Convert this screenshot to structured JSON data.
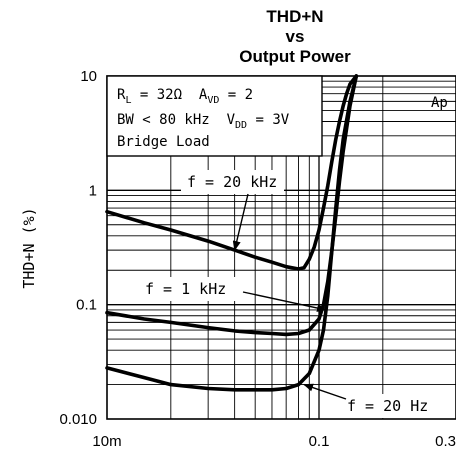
{
  "chart_data": {
    "type": "line",
    "title_lines": [
      "THD+N",
      "vs",
      "Output Power"
    ],
    "ylabel": "THD+N (%)",
    "xlabel": "",
    "x_scale": "log",
    "y_scale": "log",
    "xlim": [
      0.01,
      0.3
    ],
    "ylim": [
      0.01,
      10
    ],
    "x_tick_labels": [
      {
        "value": 0.01,
        "label": "10m"
      },
      {
        "value": 0.1,
        "label": "0.1"
      },
      {
        "value": 0.3,
        "label": "0.3"
      }
    ],
    "y_tick_labels": [
      {
        "value": 10,
        "label": "10"
      },
      {
        "value": 1,
        "label": "1"
      },
      {
        "value": 0.1,
        "label": "0.1"
      },
      {
        "value": 0.01,
        "label": "0.010"
      }
    ],
    "grid": true,
    "conditions": {
      "line1": {
        "a": "R",
        "a_sub": "L",
        "b": " = 32Ω  A",
        "b_sub": "VD",
        "c": " = 2"
      },
      "line2": {
        "a": "BW < 80 kHz  V",
        "a_sub": "DD",
        "b": " = 3V"
      },
      "line3": "Bridge Load"
    },
    "watermark": "Ap",
    "series": [
      {
        "name": "f = 20 kHz",
        "x": [
          0.01,
          0.015,
          0.02,
          0.03,
          0.04,
          0.05,
          0.06,
          0.07,
          0.08,
          0.085,
          0.09,
          0.095,
          0.1,
          0.105,
          0.11,
          0.115,
          0.12,
          0.125,
          0.13,
          0.135,
          0.14,
          0.15
        ],
        "y": [
          0.65,
          0.52,
          0.45,
          0.36,
          0.3,
          0.26,
          0.235,
          0.215,
          0.205,
          0.21,
          0.25,
          0.32,
          0.45,
          0.7,
          1.1,
          1.8,
          2.8,
          4.0,
          5.5,
          7.0,
          8.5,
          10
        ]
      },
      {
        "name": "f = 1 kHz",
        "x": [
          0.01,
          0.015,
          0.02,
          0.03,
          0.04,
          0.05,
          0.06,
          0.07,
          0.08,
          0.09,
          0.1,
          0.105,
          0.11,
          0.115,
          0.12,
          0.125,
          0.13,
          0.14,
          0.15
        ],
        "y": [
          0.085,
          0.075,
          0.07,
          0.063,
          0.059,
          0.057,
          0.056,
          0.055,
          0.056,
          0.06,
          0.075,
          0.1,
          0.16,
          0.3,
          0.6,
          1.2,
          2.2,
          5.5,
          10
        ]
      },
      {
        "name": "f = 20 Hz",
        "x": [
          0.01,
          0.015,
          0.02,
          0.03,
          0.04,
          0.05,
          0.06,
          0.07,
          0.08,
          0.09,
          0.1,
          0.105,
          0.11,
          0.115,
          0.12,
          0.125,
          0.13,
          0.14,
          0.15
        ],
        "y": [
          0.028,
          0.023,
          0.02,
          0.0185,
          0.018,
          0.018,
          0.018,
          0.0185,
          0.02,
          0.025,
          0.04,
          0.06,
          0.12,
          0.3,
          0.7,
          1.5,
          2.8,
          6.0,
          10
        ]
      }
    ],
    "annotations": [
      {
        "label": "f = 20 kHz",
        "points_to": [
          0.04,
          0.3
        ]
      },
      {
        "label": "f = 1 kHz",
        "points_to": [
          0.108,
          0.09
        ]
      },
      {
        "label": "f = 20 Hz",
        "points_to": [
          0.085,
          0.02
        ]
      }
    ]
  }
}
